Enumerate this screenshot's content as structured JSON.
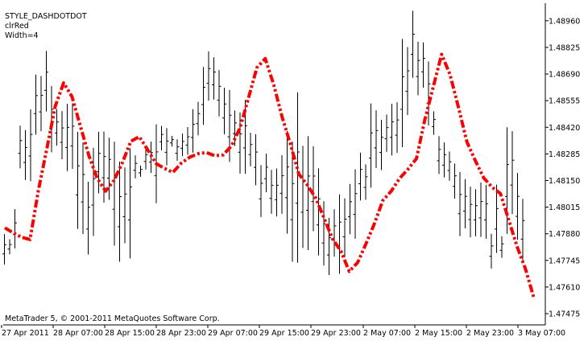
{
  "info": {
    "line1": "STYLE_DASHDOTDOT",
    "line2": "clrRed",
    "line3": "Width=4"
  },
  "copyright": "MetaTrader 5, © 2001-2011 MetaQuotes Software Corp.",
  "colors": {
    "background": "#ffffff",
    "bars": "#000000",
    "indicator": "#ff0000",
    "axis": "#000000"
  },
  "chart_data": {
    "type": "line",
    "title": "",
    "bar_type": "ohlc",
    "line_style": "dash-dot-dot",
    "y_ticks": [
      1.4896,
      1.48825,
      1.4869,
      1.48555,
      1.4842,
      1.48285,
      1.4815,
      1.48015,
      1.4788,
      1.47745,
      1.4761,
      1.47475
    ],
    "y_tick_labels": [
      "1.48960",
      "1.48825",
      "1.48690",
      "1.48555",
      "1.48420",
      "1.48285",
      "1.48150",
      "1.48015",
      "1.47880",
      "1.47745",
      "1.47610",
      "1.47475"
    ],
    "x_tick_labels": [
      "27 Apr 2011",
      "28 Apr 07:00",
      "28 Apr 15:00",
      "28 Apr 23:00",
      "29 Apr 07:00",
      "29 Apr 15:00",
      "29 Apr 23:00",
      "2 May 07:00",
      "2 May 15:00",
      "2 May 23:00",
      "3 May 07:00"
    ],
    "ylim": [
      1.47418,
      1.49049
    ],
    "bars": [
      [
        1.47724,
        1.47878
      ],
      [
        1.47776,
        1.47852
      ],
      [
        1.47806,
        1.48005
      ],
      [
        1.48212,
        1.48428
      ],
      [
        1.48153,
        1.48406
      ],
      [
        1.48147,
        1.48511
      ],
      [
        1.48383,
        1.48687
      ],
      [
        1.484,
        1.4868
      ],
      [
        1.485,
        1.48807
      ],
      [
        1.48293,
        1.48629
      ],
      [
        1.48327,
        1.48511
      ],
      [
        1.48258,
        1.48502
      ],
      [
        1.48198,
        1.48539
      ],
      [
        1.48209,
        1.48542
      ],
      [
        1.47905,
        1.48397
      ],
      [
        1.47879,
        1.48343
      ],
      [
        1.47775,
        1.48144
      ],
      [
        1.47869,
        1.48316
      ],
      [
        1.48085,
        1.48397
      ],
      [
        1.48038,
        1.48398
      ],
      [
        1.48052,
        1.48367
      ],
      [
        1.4782,
        1.48347
      ],
      [
        1.47738,
        1.48246
      ],
      [
        1.47832,
        1.48216
      ],
      [
        1.47755,
        1.48313
      ],
      [
        1.48161,
        1.48278
      ],
      [
        1.48169,
        1.48226
      ],
      [
        1.48206,
        1.48321
      ],
      [
        1.48188,
        1.48347
      ],
      [
        1.48035,
        1.48435
      ],
      [
        1.48303,
        1.48427
      ],
      [
        1.48227,
        1.48416
      ],
      [
        1.48322,
        1.48376
      ],
      [
        1.4825,
        1.48359
      ],
      [
        1.48274,
        1.48388
      ],
      [
        1.48281,
        1.48421
      ],
      [
        1.48291,
        1.48512
      ],
      [
        1.48379,
        1.48549
      ],
      [
        1.48432,
        1.48726
      ],
      [
        1.48555,
        1.48805
      ],
      [
        1.4856,
        1.48775
      ],
      [
        1.48475,
        1.4871
      ],
      [
        1.48384,
        1.48621
      ],
      [
        1.48244,
        1.48609
      ],
      [
        1.48325,
        1.48505
      ],
      [
        1.48185,
        1.48495
      ],
      [
        1.48184,
        1.48559
      ],
      [
        1.48222,
        1.48392
      ],
      [
        1.48126,
        1.48385
      ],
      [
        1.47965,
        1.48228
      ],
      [
        1.48091,
        1.48286
      ],
      [
        1.47981,
        1.48204
      ],
      [
        1.47968,
        1.48211
      ],
      [
        1.47981,
        1.48279
      ],
      [
        1.47881,
        1.48401
      ],
      [
        1.47738,
        1.48348
      ],
      [
        1.47733,
        1.48597
      ],
      [
        1.47808,
        1.48326
      ],
      [
        1.47797,
        1.48375
      ],
      [
        1.47893,
        1.48323
      ],
      [
        1.4777,
        1.48212
      ],
      [
        1.47719,
        1.48045
      ],
      [
        1.47671,
        1.47961
      ],
      [
        1.47764,
        1.48004
      ],
      [
        1.47677,
        1.4808
      ],
      [
        1.4776,
        1.48059
      ],
      [
        1.47877,
        1.48132
      ],
      [
        1.47855,
        1.48207
      ],
      [
        1.48049,
        1.48291
      ],
      [
        1.48052,
        1.48232
      ],
      [
        1.48114,
        1.48541
      ],
      [
        1.48213,
        1.48506
      ],
      [
        1.48203,
        1.48458
      ],
      [
        1.48295,
        1.48485
      ],
      [
        1.48277,
        1.48539
      ],
      [
        1.4829,
        1.48547
      ],
      [
        1.48319,
        1.48868
      ],
      [
        1.48482,
        1.48827
      ],
      [
        1.48671,
        1.49011
      ],
      [
        1.48582,
        1.48854
      ],
      [
        1.48621,
        1.4885
      ],
      [
        1.48429,
        1.48754
      ],
      [
        1.48382,
        1.48501
      ],
      [
        1.48183,
        1.48375
      ],
      [
        1.48166,
        1.48343
      ],
      [
        1.48149,
        1.48297
      ],
      [
        1.48058,
        1.48236
      ],
      [
        1.47868,
        1.48193
      ],
      [
        1.47908,
        1.48157
      ],
      [
        1.47862,
        1.48119
      ],
      [
        1.47867,
        1.48106
      ],
      [
        1.47864,
        1.4814
      ],
      [
        1.47855,
        1.48128
      ],
      [
        1.47704,
        1.4788
      ],
      [
        1.47783,
        1.48129
      ],
      [
        1.47758,
        1.47867
      ],
      [
        1.4788,
        1.4842
      ],
      [
        1.4798,
        1.484
      ],
      [
        1.4785,
        1.48188
      ],
      [
        1.47743,
        1.48057
      ]
    ],
    "series": [
      {
        "values": [
          1.4791,
          1.47885,
          1.47862,
          1.47851,
          1.48101,
          1.4831,
          1.48527,
          1.48645,
          1.48575,
          1.48424,
          1.48277,
          1.48161,
          1.48096,
          1.48151,
          1.48241,
          1.48349,
          1.48372,
          1.48306,
          1.48236,
          1.48212,
          1.48191,
          1.48238,
          1.48268,
          1.48286,
          1.48292,
          1.48276,
          1.4828,
          1.48327,
          1.48417,
          1.48567,
          1.48722,
          1.48768,
          1.48638,
          1.48474,
          1.48334,
          1.48183,
          1.48128,
          1.48062,
          1.4796,
          1.47855,
          1.47793,
          1.47689,
          1.47734,
          1.4783,
          1.47932,
          1.48049,
          1.48096,
          1.48161,
          1.48208,
          1.48261,
          1.48458,
          1.48625,
          1.4879,
          1.48687,
          1.48522,
          1.48347,
          1.48252,
          1.48164,
          1.48116,
          1.48084,
          1.47949,
          1.47813,
          1.47699,
          1.47552
        ]
      }
    ]
  }
}
